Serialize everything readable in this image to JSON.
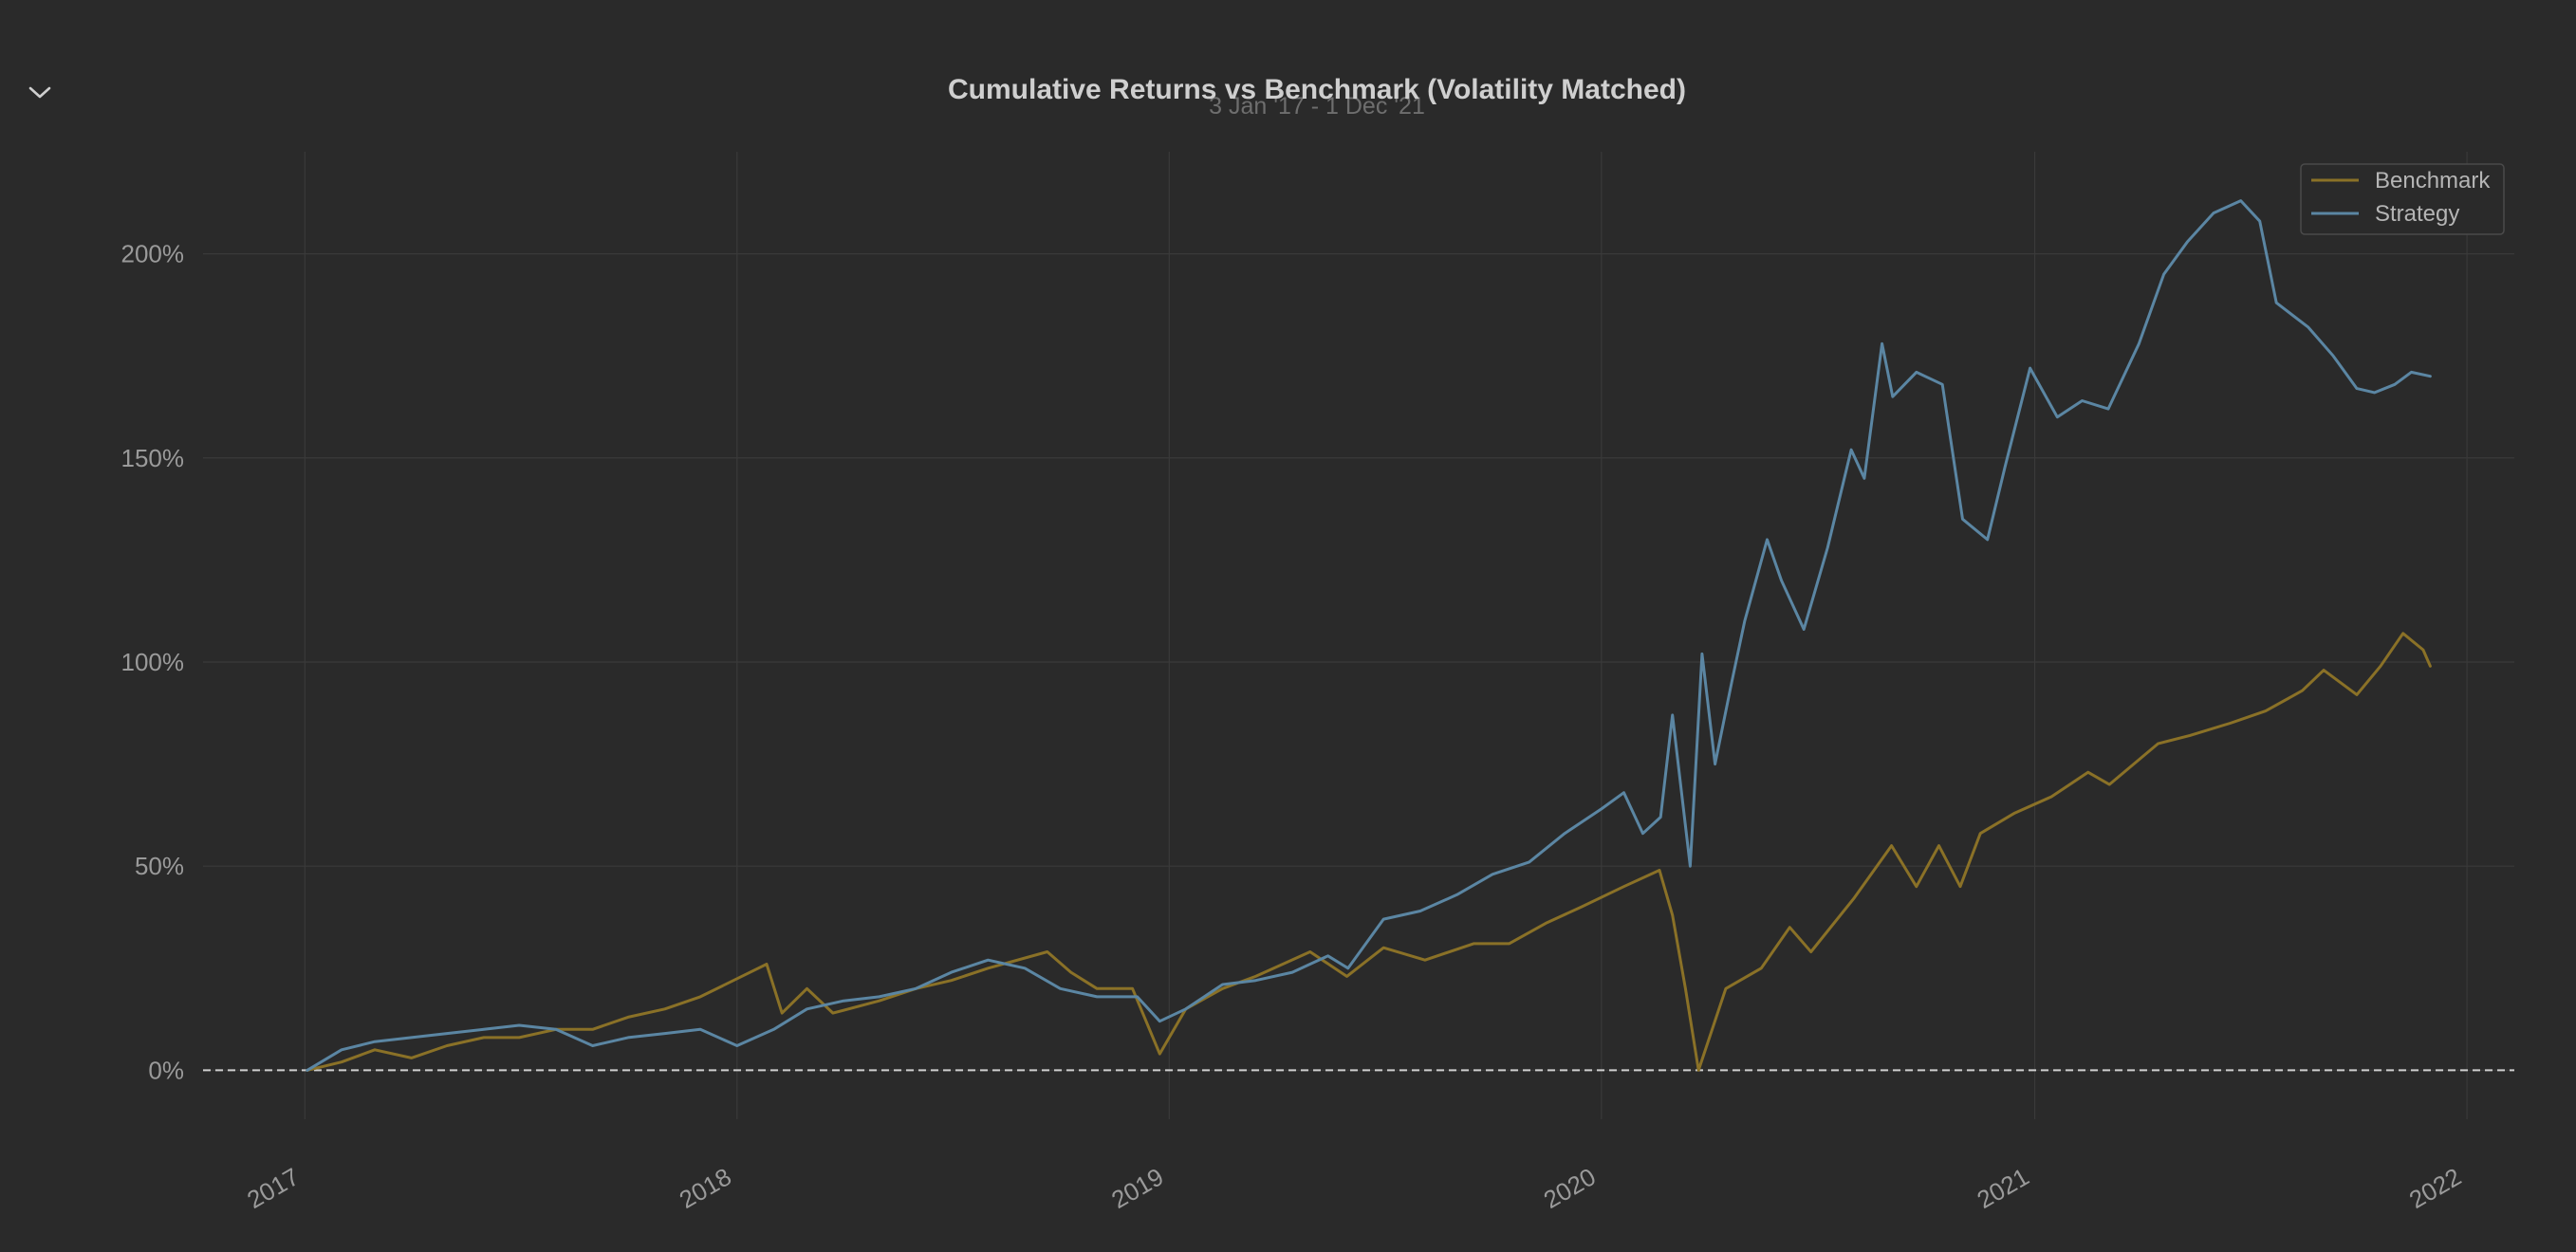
{
  "toggle": {
    "icon": "chevron-down-icon"
  },
  "chart_data": {
    "type": "line",
    "title": "Cumulative Returns vs Benchmark (Volatility Matched)",
    "subtitle": "3 Jan '17 - 1 Dec '21",
    "xlabel": "",
    "ylabel": "",
    "x_ticks": [
      "2017",
      "2018",
      "2019",
      "2020",
      "2021",
      "2022"
    ],
    "y_ticks": [
      "0%",
      "50%",
      "100%",
      "150%",
      "200%"
    ],
    "y_tick_values": [
      0,
      50,
      100,
      150,
      200
    ],
    "ylim": [
      -12,
      225
    ],
    "xlim": [
      "2016-10-07",
      "2022-02-10"
    ],
    "grid": true,
    "legend_position": "top-right",
    "baseline": 0,
    "colors": {
      "background": "#2a2a2a",
      "grid": "#3a3a3a",
      "baseline": "#d0d0d0",
      "benchmark": "#8a7127",
      "strategy": "#5b86a3"
    },
    "series": [
      {
        "name": "Benchmark",
        "color": "#8a7127",
        "points": [
          [
            "2017-01-03",
            0
          ],
          [
            "2017-02-01",
            2
          ],
          [
            "2017-03-01",
            5
          ],
          [
            "2017-04-01",
            3
          ],
          [
            "2017-05-01",
            6
          ],
          [
            "2017-06-01",
            8
          ],
          [
            "2017-07-01",
            8
          ],
          [
            "2017-08-01",
            10
          ],
          [
            "2017-09-01",
            10
          ],
          [
            "2017-10-01",
            13
          ],
          [
            "2017-11-01",
            15
          ],
          [
            "2017-12-01",
            18
          ],
          [
            "2018-01-26",
            26
          ],
          [
            "2018-02-08",
            14
          ],
          [
            "2018-03-01",
            20
          ],
          [
            "2018-03-23",
            14
          ],
          [
            "2018-05-01",
            17
          ],
          [
            "2018-06-01",
            20
          ],
          [
            "2018-07-01",
            22
          ],
          [
            "2018-08-01",
            25
          ],
          [
            "2018-09-20",
            29
          ],
          [
            "2018-10-10",
            24
          ],
          [
            "2018-11-01",
            20
          ],
          [
            "2018-12-01",
            20
          ],
          [
            "2018-12-24",
            4
          ],
          [
            "2019-01-15",
            15
          ],
          [
            "2019-02-15",
            20
          ],
          [
            "2019-03-15",
            23
          ],
          [
            "2019-04-30",
            29
          ],
          [
            "2019-05-31",
            23
          ],
          [
            "2019-07-01",
            30
          ],
          [
            "2019-08-05",
            27
          ],
          [
            "2019-09-15",
            31
          ],
          [
            "2019-10-15",
            31
          ],
          [
            "2019-11-15",
            36
          ],
          [
            "2019-12-15",
            40
          ],
          [
            "2020-01-20",
            45
          ],
          [
            "2020-02-19",
            49
          ],
          [
            "2020-03-01",
            38
          ],
          [
            "2020-03-12",
            20
          ],
          [
            "2020-03-23",
            0
          ],
          [
            "2020-04-15",
            20
          ],
          [
            "2020-05-15",
            25
          ],
          [
            "2020-06-08",
            35
          ],
          [
            "2020-06-26",
            29
          ],
          [
            "2020-08-01",
            42
          ],
          [
            "2020-09-02",
            55
          ],
          [
            "2020-09-23",
            45
          ],
          [
            "2020-10-12",
            55
          ],
          [
            "2020-10-30",
            45
          ],
          [
            "2020-11-16",
            58
          ],
          [
            "2020-12-15",
            63
          ],
          [
            "2021-01-15",
            67
          ],
          [
            "2021-02-15",
            73
          ],
          [
            "2021-03-05",
            70
          ],
          [
            "2021-04-15",
            80
          ],
          [
            "2021-05-12",
            82
          ],
          [
            "2021-06-15",
            85
          ],
          [
            "2021-07-15",
            88
          ],
          [
            "2021-08-15",
            93
          ],
          [
            "2021-09-02",
            98
          ],
          [
            "2021-09-30",
            92
          ],
          [
            "2021-10-20",
            99
          ],
          [
            "2021-11-08",
            107
          ],
          [
            "2021-11-25",
            103
          ],
          [
            "2021-12-01",
            99
          ]
        ]
      },
      {
        "name": "Strategy",
        "color": "#5b86a3",
        "points": [
          [
            "2017-01-03",
            0
          ],
          [
            "2017-02-01",
            5
          ],
          [
            "2017-03-01",
            7
          ],
          [
            "2017-04-01",
            8
          ],
          [
            "2017-05-01",
            9
          ],
          [
            "2017-06-01",
            10
          ],
          [
            "2017-07-01",
            11
          ],
          [
            "2017-08-01",
            10
          ],
          [
            "2017-09-01",
            6
          ],
          [
            "2017-10-01",
            8
          ],
          [
            "2017-11-01",
            9
          ],
          [
            "2017-12-01",
            10
          ],
          [
            "2018-01-01",
            6
          ],
          [
            "2018-02-01",
            10
          ],
          [
            "2018-03-01",
            15
          ],
          [
            "2018-04-01",
            17
          ],
          [
            "2018-05-01",
            18
          ],
          [
            "2018-06-01",
            20
          ],
          [
            "2018-07-01",
            24
          ],
          [
            "2018-08-01",
            27
          ],
          [
            "2018-09-01",
            25
          ],
          [
            "2018-10-01",
            20
          ],
          [
            "2018-11-01",
            18
          ],
          [
            "2018-12-05",
            18
          ],
          [
            "2018-12-24",
            12
          ],
          [
            "2019-01-15",
            15
          ],
          [
            "2019-02-15",
            21
          ],
          [
            "2019-03-15",
            22
          ],
          [
            "2019-04-15",
            24
          ],
          [
            "2019-05-15",
            28
          ],
          [
            "2019-06-01",
            25
          ],
          [
            "2019-07-01",
            37
          ],
          [
            "2019-08-01",
            39
          ],
          [
            "2019-09-01",
            43
          ],
          [
            "2019-10-01",
            48
          ],
          [
            "2019-11-01",
            51
          ],
          [
            "2019-12-01",
            58
          ],
          [
            "2020-01-01",
            64
          ],
          [
            "2020-01-20",
            68
          ],
          [
            "2020-02-05",
            58
          ],
          [
            "2020-02-20",
            62
          ],
          [
            "2020-03-01",
            87
          ],
          [
            "2020-03-16",
            50
          ],
          [
            "2020-03-26",
            102
          ],
          [
            "2020-04-06",
            75
          ],
          [
            "2020-04-20",
            95
          ],
          [
            "2020-05-01",
            110
          ],
          [
            "2020-05-20",
            130
          ],
          [
            "2020-06-01",
            120
          ],
          [
            "2020-06-20",
            108
          ],
          [
            "2020-07-10",
            128
          ],
          [
            "2020-07-30",
            152
          ],
          [
            "2020-08-10",
            145
          ],
          [
            "2020-08-25",
            178
          ],
          [
            "2020-09-03",
            165
          ],
          [
            "2020-09-23",
            171
          ],
          [
            "2020-10-15",
            168
          ],
          [
            "2020-11-01",
            135
          ],
          [
            "2020-11-22",
            130
          ],
          [
            "2020-12-07",
            148
          ],
          [
            "2020-12-28",
            172
          ],
          [
            "2021-01-20",
            160
          ],
          [
            "2021-02-10",
            164
          ],
          [
            "2021-03-04",
            162
          ],
          [
            "2021-03-30",
            178
          ],
          [
            "2021-04-20",
            195
          ],
          [
            "2021-05-10",
            203
          ],
          [
            "2021-06-01",
            210
          ],
          [
            "2021-06-24",
            213
          ],
          [
            "2021-07-10",
            208
          ],
          [
            "2021-07-24",
            188
          ],
          [
            "2021-08-20",
            182
          ],
          [
            "2021-09-10",
            175
          ],
          [
            "2021-09-30",
            167
          ],
          [
            "2021-10-15",
            166
          ],
          [
            "2021-11-01",
            168
          ],
          [
            "2021-11-15",
            171
          ],
          [
            "2021-12-01",
            170
          ]
        ]
      }
    ]
  }
}
